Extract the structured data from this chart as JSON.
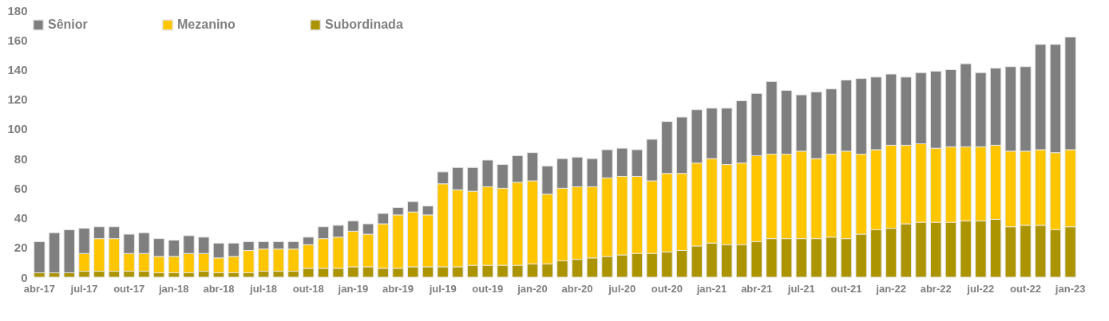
{
  "chart_data": {
    "type": "bar",
    "stacked": true,
    "legend": "top",
    "grid": false,
    "categories": [
      "abr-17",
      null,
      null,
      "jul-17",
      null,
      null,
      "out-17",
      null,
      null,
      "jan-18",
      null,
      null,
      "abr-18",
      null,
      null,
      "jul-18",
      null,
      null,
      "out-18",
      null,
      null,
      "jan-19",
      null,
      null,
      "abr-19",
      null,
      null,
      "jul-19",
      null,
      null,
      "out-19",
      null,
      null,
      "jan-20",
      null,
      null,
      "abr-20",
      null,
      null,
      "jul-20",
      null,
      null,
      "out-20",
      null,
      null,
      "jan-21",
      null,
      null,
      "abr-21",
      null,
      null,
      "jul-21",
      null,
      null,
      "out-21",
      null,
      null,
      "jan-22",
      null,
      null,
      "abr-22",
      null,
      null,
      "jul-22",
      null,
      null,
      "out-22",
      null,
      null,
      "jan-23"
    ],
    "ylim": [
      0,
      180
    ],
    "yticks": [
      0,
      20,
      40,
      60,
      80,
      100,
      120,
      140,
      160,
      180
    ],
    "series": [
      {
        "name": "Subordinada",
        "color": "#ac9400",
        "values": [
          3,
          3,
          3,
          4,
          4,
          4,
          4,
          4,
          3,
          3,
          3,
          4,
          3,
          3,
          3,
          4,
          4,
          4,
          6,
          6,
          6,
          7,
          7,
          6,
          6,
          7,
          7,
          7,
          7,
          8,
          8,
          8,
          8,
          9,
          9,
          11,
          12,
          13,
          14,
          15,
          16,
          16,
          17,
          18,
          21,
          23,
          22,
          22,
          24,
          26,
          26,
          26,
          26,
          27,
          26,
          29,
          32,
          33,
          36,
          37,
          37,
          37,
          38,
          38,
          39,
          34,
          35,
          35,
          32,
          34
        ]
      },
      {
        "name": "Mezanino",
        "color": "#ffc600",
        "values": [
          0,
          0,
          0,
          12,
          22,
          22,
          12,
          12,
          11,
          11,
          13,
          12,
          10,
          11,
          15,
          15,
          15,
          15,
          16,
          20,
          21,
          24,
          22,
          30,
          36,
          37,
          35,
          56,
          52,
          50,
          53,
          52,
          56,
          56,
          47,
          49,
          49,
          48,
          53,
          53,
          52,
          49,
          53,
          52,
          56,
          57,
          54,
          55,
          58,
          57,
          57,
          59,
          54,
          56,
          59,
          54,
          54,
          56,
          53,
          53,
          50,
          51,
          50,
          50,
          50,
          51,
          50,
          51,
          52,
          52
        ]
      },
      {
        "name": "Sênior",
        "color": "#7f7f7f",
        "values": [
          21,
          27,
          29,
          17,
          8,
          8,
          13,
          14,
          12,
          11,
          12,
          11,
          10,
          9,
          6,
          5,
          5,
          5,
          5,
          8,
          8,
          7,
          7,
          7,
          5,
          7,
          6,
          8,
          15,
          16,
          18,
          16,
          18,
          19,
          19,
          20,
          20,
          19,
          19,
          19,
          18,
          28,
          35,
          38,
          36,
          34,
          38,
          42,
          42,
          49,
          43,
          38,
          45,
          44,
          48,
          51,
          49,
          48,
          46,
          48,
          52,
          52,
          56,
          50,
          52,
          57,
          57,
          71,
          73,
          76
        ]
      }
    ]
  }
}
